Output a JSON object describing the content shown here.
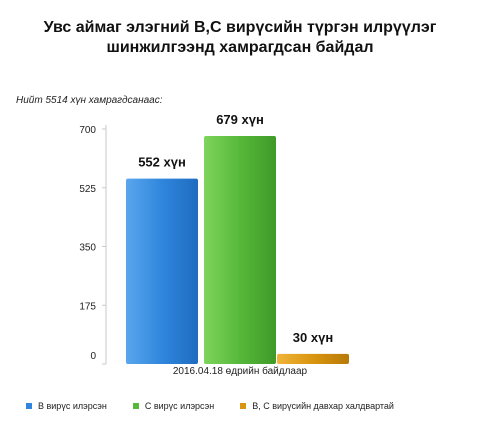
{
  "chart_data": {
    "type": "bar",
    "title": [
      "Увс аймаг элэгний B,C вирүсийн түргэн илрүүлэг",
      "шинжилгээнд хамрагдсан байдал"
    ],
    "subtitle": "Нийт 5514 хүн хамрагдсанаас:",
    "x_note": "2016.04.18 өдрийн байдлаар",
    "categories": [
      "B вирүс илэрсэн",
      "C вирүс илэрсэн",
      "B, C вирүсийн давхар халдвартай"
    ],
    "values": [
      552,
      679,
      30
    ],
    "value_labels": [
      "552 хүн",
      "679 хүн",
      "30 хүн"
    ],
    "colors": [
      "#2f86dc",
      "#56b83a",
      "#d9950f"
    ],
    "yticks": [
      0,
      175,
      350,
      525,
      700
    ],
    "ylim": [
      0,
      700
    ],
    "grid": false,
    "legend": "bottom"
  }
}
